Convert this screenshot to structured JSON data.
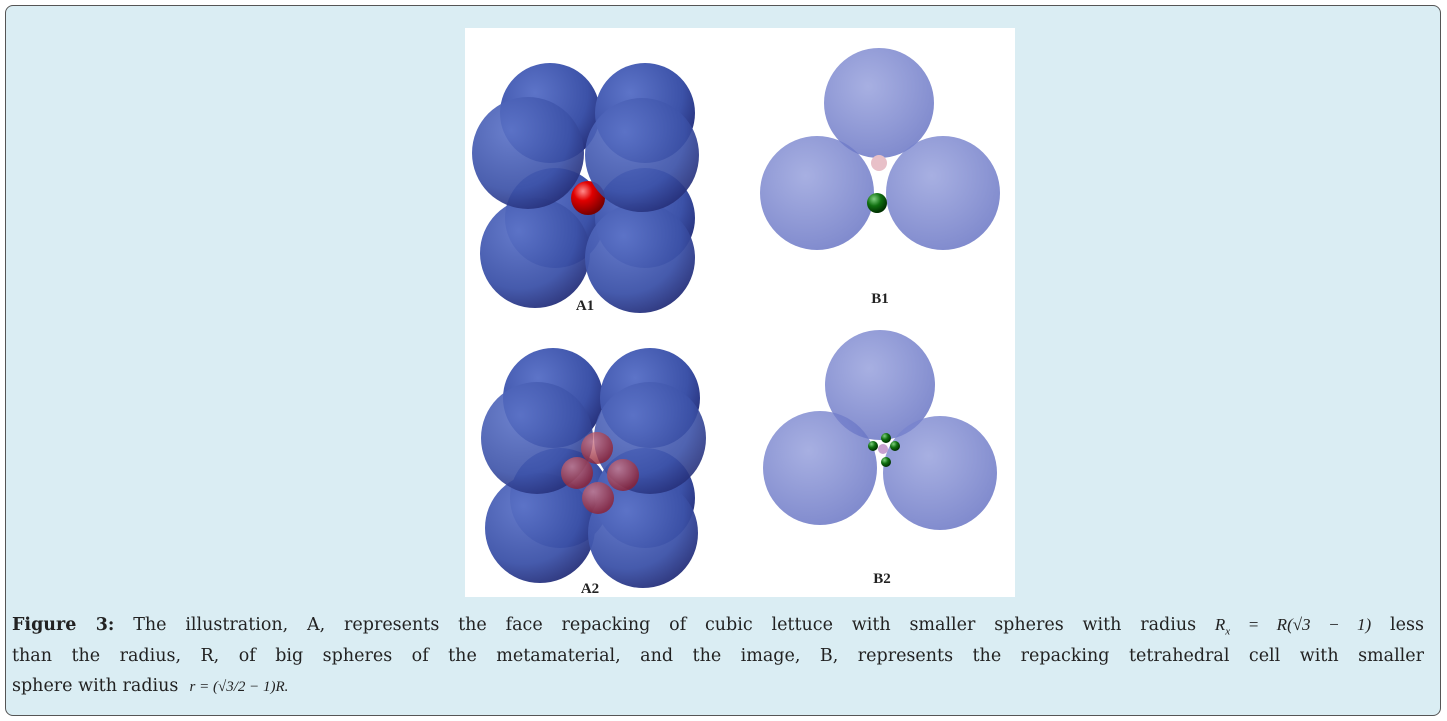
{
  "figure": {
    "panels": [
      "A1",
      "B1",
      "A2",
      "B2"
    ]
  },
  "caption": {
    "label": "Figure 3:",
    "line1": "The illustration, A, represents the face repacking of cubic lettuce with smaller spheres with radius",
    "formula1": {
      "lhs": "R",
      "sub": "x",
      "rhs": "= R(√3 − 1)"
    },
    "line1_end": "less",
    "line2": "than the radius, R, of big spheres of the metamaterial, and the image, B, represents the repacking tetrahedral cell with smaller",
    "line3": "sphere with radius",
    "formula2": "r = (√3/2 − 1)R."
  }
}
